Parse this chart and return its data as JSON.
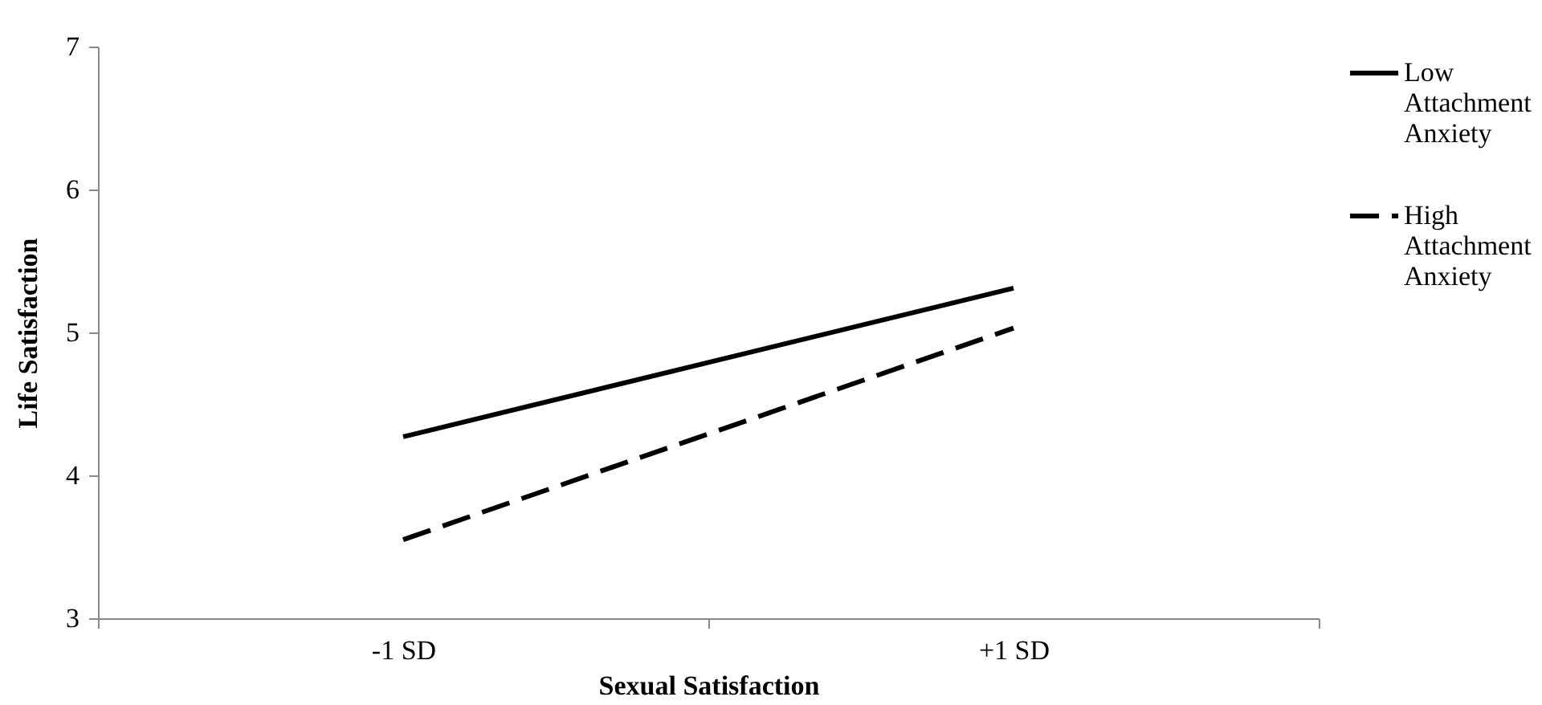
{
  "chart_data": {
    "type": "line",
    "xlabel": "Sexual Satisfaction",
    "ylabel": "Life Satisfaction",
    "categories": [
      "-1 SD",
      "+1 SD"
    ],
    "series": [
      {
        "name": "Low Attachment Anxiety",
        "color": "#000000",
        "line_style": "solid",
        "values": [
          4.27,
          5.31
        ]
      },
      {
        "name": "High Attachment Anxiety",
        "color": "#000000",
        "line_style": "dashed",
        "values": [
          3.55,
          5.03
        ]
      }
    ],
    "ylim": [
      3,
      7
    ],
    "yticks": [
      3,
      4,
      5,
      6,
      7
    ],
    "grid": false,
    "legend": "right",
    "marker": "none"
  }
}
